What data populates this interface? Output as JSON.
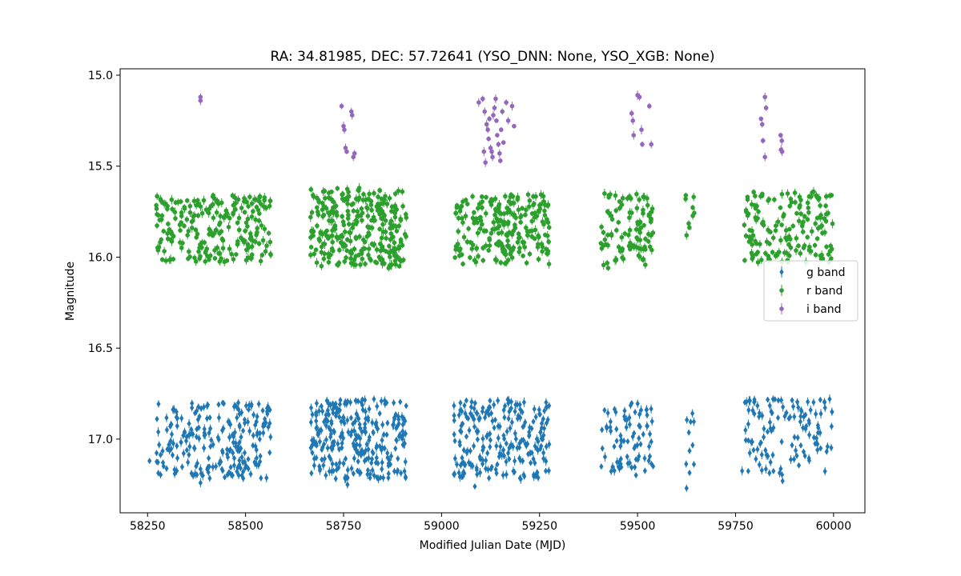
{
  "chart_data": {
    "type": "scatter",
    "title": "RA: 34.81985, DEC: 57.72641 (YSO_DNN: None, YSO_XGB: None)",
    "xlabel": "Modified Julian Date (MJD)",
    "ylabel": "Magnitude",
    "xlim": [
      58180,
      60080
    ],
    "ylim": [
      17.405,
      14.965
    ],
    "y_inverted": true,
    "xticks": [
      58250,
      58500,
      58750,
      59000,
      59250,
      59500,
      59750,
      60000
    ],
    "xtick_labels": [
      "58250",
      "58500",
      "58750",
      "59000",
      "59250",
      "59500",
      "59750",
      "60000"
    ],
    "yticks": [
      15.0,
      15.5,
      16.0,
      16.5,
      17.0
    ],
    "ytick_labels": [
      "15.0",
      "15.5",
      "16.0",
      "16.5",
      "17.0"
    ],
    "grid": false,
    "legend_position": "right",
    "series": [
      {
        "name": "g band",
        "color": "#1f77b4",
        "marker": "diamond",
        "clusters": [
          {
            "x": [
              58272,
              58565
            ],
            "y": [
              16.8,
              17.22
            ],
            "n": 230
          },
          {
            "x": [
              58665,
              58910
            ],
            "y": [
              16.78,
              17.22
            ],
            "n": 280
          },
          {
            "x": [
              59030,
              59275
            ],
            "y": [
              16.78,
              17.22
            ],
            "n": 230
          },
          {
            "x": [
              59405,
              59540
            ],
            "y": [
              16.8,
              17.2
            ],
            "n": 80
          },
          {
            "x": [
              59622,
              59645
            ],
            "y": [
              16.85,
              17.25
            ],
            "n": 10
          },
          {
            "x": [
              59765,
              60000
            ],
            "y": [
              16.78,
              17.2
            ],
            "n": 120
          }
        ],
        "points": [
          {
            "x": 58385,
            "y": 17.24
          },
          {
            "x": 58255,
            "y": 17.12
          },
          {
            "x": 58760,
            "y": 17.25
          },
          {
            "x": 59085,
            "y": 17.26
          },
          {
            "x": 59625,
            "y": 17.27
          },
          {
            "x": 59870,
            "y": 17.23
          },
          {
            "x": 59995,
            "y": 16.93
          },
          {
            "x": 59990,
            "y": 16.78
          }
        ]
      },
      {
        "name": "r band",
        "color": "#2ca02c",
        "marker": "circle",
        "clusters": [
          {
            "x": [
              58272,
              58565
            ],
            "y": [
              15.66,
              16.04
            ],
            "n": 230
          },
          {
            "x": [
              58665,
              58910
            ],
            "y": [
              15.62,
              16.05
            ],
            "n": 300
          },
          {
            "x": [
              59030,
              59275
            ],
            "y": [
              15.65,
              16.04
            ],
            "n": 230
          },
          {
            "x": [
              59405,
              59540
            ],
            "y": [
              15.65,
              16.05
            ],
            "n": 100
          },
          {
            "x": [
              59622,
              59648
            ],
            "y": [
              15.65,
              15.9
            ],
            "n": 8
          },
          {
            "x": [
              59765,
              60000
            ],
            "y": [
              15.64,
              16.03
            ],
            "n": 160
          }
        ],
        "points": [
          {
            "x": 58865,
            "y": 16.06
          },
          {
            "x": 58790,
            "y": 15.62
          },
          {
            "x": 59425,
            "y": 16.06
          },
          {
            "x": 59625,
            "y": 15.88
          },
          {
            "x": 59995,
            "y": 15.66
          }
        ]
      },
      {
        "name": "i band",
        "color": "#9467bd",
        "marker": "circle",
        "clusters": [],
        "points": [
          {
            "x": 58385,
            "y": 15.12
          },
          {
            "x": 58385,
            "y": 15.14
          },
          {
            "x": 58745,
            "y": 15.17
          },
          {
            "x": 58750,
            "y": 15.28
          },
          {
            "x": 58752,
            "y": 15.3
          },
          {
            "x": 58755,
            "y": 15.4
          },
          {
            "x": 58758,
            "y": 15.42
          },
          {
            "x": 58770,
            "y": 15.2
          },
          {
            "x": 58772,
            "y": 15.22
          },
          {
            "x": 58775,
            "y": 15.45
          },
          {
            "x": 58778,
            "y": 15.43
          },
          {
            "x": 59095,
            "y": 15.15
          },
          {
            "x": 59105,
            "y": 15.13
          },
          {
            "x": 59110,
            "y": 15.2
          },
          {
            "x": 59115,
            "y": 15.27
          },
          {
            "x": 59118,
            "y": 15.3
          },
          {
            "x": 59120,
            "y": 15.35
          },
          {
            "x": 59125,
            "y": 15.4
          },
          {
            "x": 59128,
            "y": 15.42
          },
          {
            "x": 59130,
            "y": 15.45
          },
          {
            "x": 59132,
            "y": 15.22
          },
          {
            "x": 59135,
            "y": 15.18
          },
          {
            "x": 59138,
            "y": 15.13
          },
          {
            "x": 59140,
            "y": 15.25
          },
          {
            "x": 59142,
            "y": 15.33
          },
          {
            "x": 59145,
            "y": 15.38
          },
          {
            "x": 59148,
            "y": 15.43
          },
          {
            "x": 59150,
            "y": 15.47
          },
          {
            "x": 59152,
            "y": 15.3
          },
          {
            "x": 59155,
            "y": 15.2
          },
          {
            "x": 59158,
            "y": 15.37
          },
          {
            "x": 59165,
            "y": 15.15
          },
          {
            "x": 59170,
            "y": 15.25
          },
          {
            "x": 59180,
            "y": 15.17
          },
          {
            "x": 59185,
            "y": 15.28
          },
          {
            "x": 59108,
            "y": 15.42
          },
          {
            "x": 59112,
            "y": 15.48
          },
          {
            "x": 59122,
            "y": 15.24
          },
          {
            "x": 59500,
            "y": 15.11
          },
          {
            "x": 59505,
            "y": 15.12
          },
          {
            "x": 59485,
            "y": 15.21
          },
          {
            "x": 59488,
            "y": 15.25
          },
          {
            "x": 59490,
            "y": 15.33
          },
          {
            "x": 59510,
            "y": 15.3
          },
          {
            "x": 59512,
            "y": 15.38
          },
          {
            "x": 59530,
            "y": 15.17
          },
          {
            "x": 59535,
            "y": 15.38
          },
          {
            "x": 59825,
            "y": 15.12
          },
          {
            "x": 59828,
            "y": 15.18
          },
          {
            "x": 59815,
            "y": 15.24
          },
          {
            "x": 59818,
            "y": 15.27
          },
          {
            "x": 59820,
            "y": 15.36
          },
          {
            "x": 59825,
            "y": 15.45
          },
          {
            "x": 59865,
            "y": 15.33
          },
          {
            "x": 59868,
            "y": 15.36
          },
          {
            "x": 59866,
            "y": 15.41
          },
          {
            "x": 59869,
            "y": 15.42
          }
        ]
      }
    ]
  }
}
